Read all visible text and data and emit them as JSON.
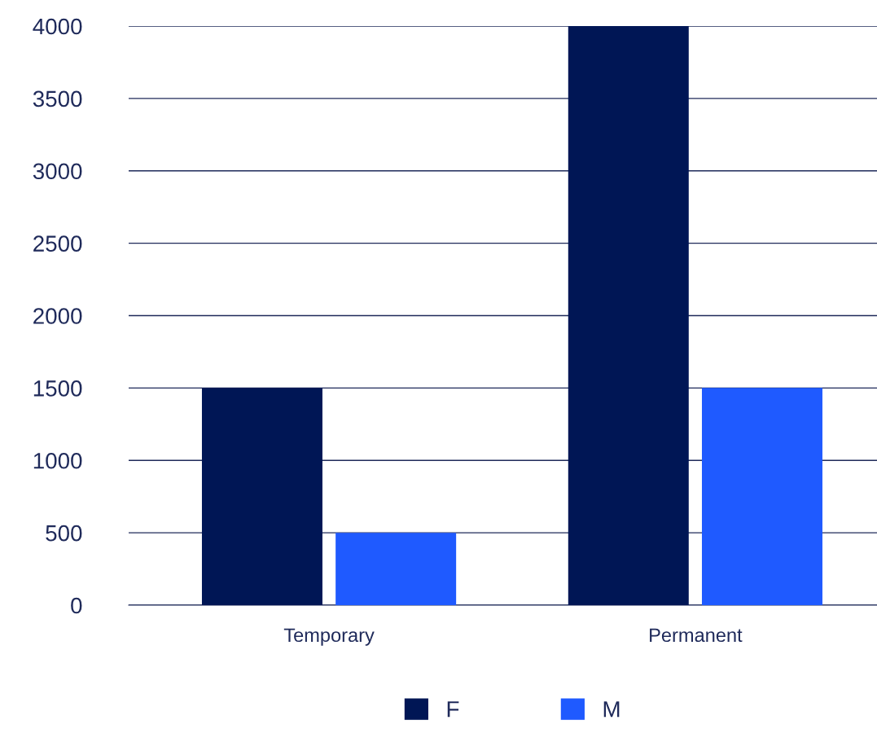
{
  "chart_data": {
    "type": "bar",
    "categories": [
      "Temporary",
      "Permanent"
    ],
    "series": [
      {
        "name": "F",
        "color": "#001655",
        "values": [
          1500,
          4000
        ]
      },
      {
        "name": "M",
        "color": "#1f5aff",
        "values": [
          500,
          1500
        ]
      }
    ],
    "ylim": [
      0,
      4000
    ],
    "yticks": [
      0,
      500,
      1000,
      1500,
      2000,
      2500,
      3000,
      3500,
      4000
    ],
    "grid": "y",
    "legend": "bottom"
  }
}
